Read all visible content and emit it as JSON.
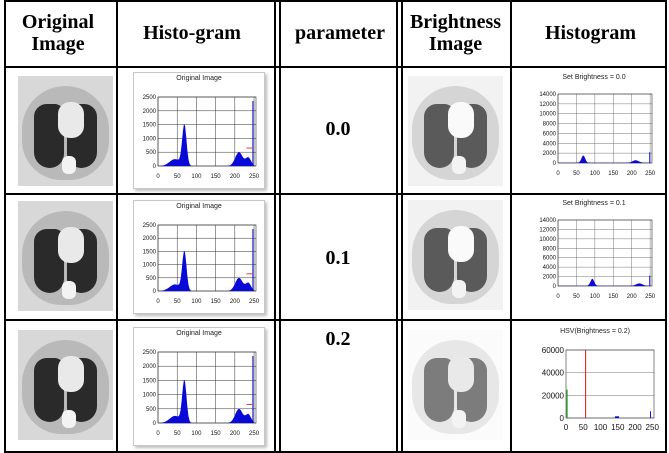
{
  "headers": {
    "original_image": "Original Image",
    "histogram1": "Histo-gram",
    "parameter": "parameter",
    "brightness_image": "Brightness Image",
    "histogram2": "Histogram"
  },
  "rows": [
    {
      "parameter": "0.0",
      "orig_hist_title": "Original Image",
      "bright_hist_title": "Set Brightness = 0.0"
    },
    {
      "parameter": "0.1",
      "orig_hist_title": "Original Image",
      "bright_hist_title": "Set Brightness = 0.1"
    },
    {
      "parameter": "0.2",
      "orig_hist_title": "Original Image",
      "bright_hist_title": "HSV(Brightness = 0.2)"
    }
  ],
  "axes": {
    "orig_y_ticks": [
      "2500",
      "2000",
      "1500",
      "1000",
      "500",
      "0"
    ],
    "orig_x_ticks": [
      "0",
      "50",
      "100",
      "150",
      "200",
      "250"
    ],
    "bright_y_ticks": [
      "14000",
      "12000",
      "10000",
      "8000",
      "6000",
      "4000",
      "2000",
      "0"
    ],
    "bright_x_ticks": [
      "0",
      "50",
      "100",
      "150",
      "200",
      "250"
    ],
    "hsv_y_ticks": [
      "60000",
      "40000",
      "20000",
      "0"
    ],
    "hsv_x_ticks": [
      "0",
      "50",
      "100",
      "150",
      "200",
      "250"
    ]
  },
  "colors": {
    "histogram_fill": "#0a0ad8",
    "highlight_red": "#e01010"
  }
}
